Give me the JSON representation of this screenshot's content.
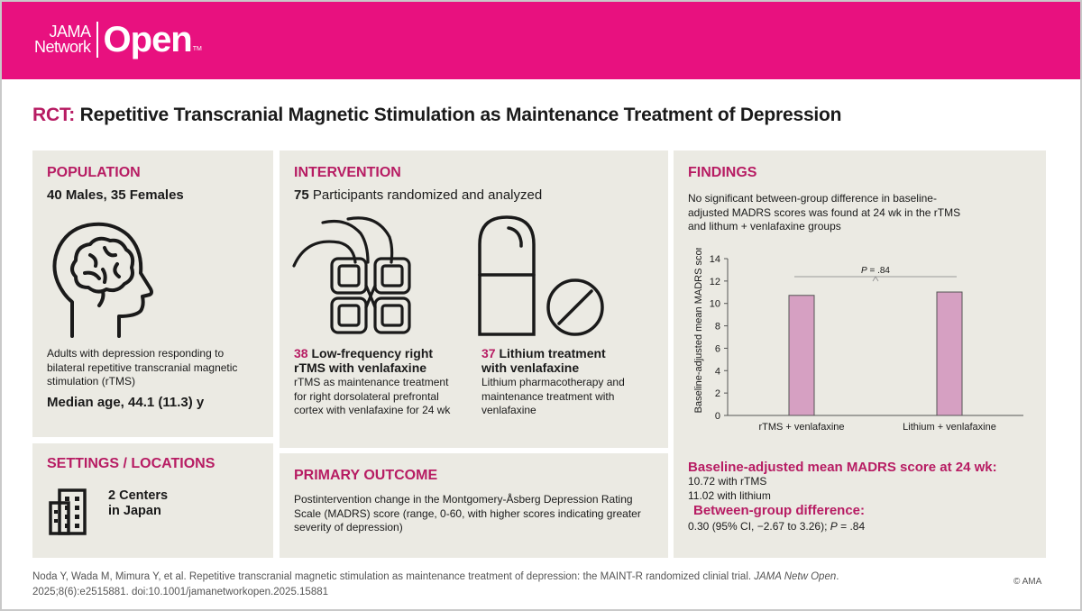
{
  "brand": {
    "line1": "JAMA",
    "line2": "Network",
    "product": "Open",
    "tm": "TM"
  },
  "colors": {
    "accent": "#e8117f",
    "heading": "#b71c63",
    "panel": "#ebeae3",
    "bar": "#d6a0c2"
  },
  "title": {
    "prefix": "RCT:",
    "text": "Repetitive Transcranial Magnetic Stimulation as Maintenance Treatment of Depression"
  },
  "population": {
    "heading": "POPULATION",
    "count": "40 Males, 35 Females",
    "icon": "head-brain-icon",
    "description": "Adults with depression responding to bilateral repetitive transcranial magnetic stimulation (rTMS)",
    "median_age": "Median age, 44.1 (11.3) y"
  },
  "settings": {
    "heading": "SETTINGS / LOCATIONS",
    "icon": "building-icon",
    "line1": "2 Centers",
    "line2": "in Japan"
  },
  "intervention": {
    "heading": "INTERVENTION",
    "count_num": "75",
    "count_text": "Participants randomized and analyzed",
    "arm1": {
      "icon": "rtms-coil-icon",
      "n": "38",
      "title_line1": "Low-frequency right",
      "title_line2": "rTMS with venlafaxine",
      "description": "rTMS as maintenance treatment for right dorsolateral prefrontal cortex with venlafaxine for 24 wk"
    },
    "arm2": {
      "icon": "pill-icon",
      "n": "37",
      "title_line1": "Lithium treatment",
      "title_line2": "with venlafaxine",
      "description": "Lithium pharmacotherapy and maintenance treatment with venlafaxine"
    }
  },
  "outcome": {
    "heading": "PRIMARY OUTCOME",
    "description": "Postintervention change in the Montgomery-Åsberg Depression Rating Scale (MADRS) score (range, 0-60, with higher scores indicating greater severity of depression)"
  },
  "findings": {
    "heading": "FINDINGS",
    "summary": "No significant between-group difference in baseline-adjusted MADRS scores was found at 24 wk in the rTMS and lithum + venlafaxine groups",
    "result_heading": "Baseline-adjusted mean MADRS score at 24 wk:",
    "result_rtms": "10.72 with rTMS",
    "result_lithium": "11.02 with lithium",
    "diff_heading": "Between-group difference:",
    "diff_value_prefix": "0.30 (95% CI, −2.67 to 3.26); ",
    "diff_p_label": "P",
    "diff_p_value": " = .84"
  },
  "chart_data": {
    "type": "bar",
    "categories": [
      "rTMS + venlafaxine",
      "Lithium + venlafaxine"
    ],
    "values": [
      10.72,
      11.02
    ],
    "ylabel": "Baseline-adjusted mean MADRS score",
    "ylim": [
      0,
      14
    ],
    "yticks": [
      0,
      2,
      4,
      6,
      8,
      10,
      12,
      14
    ],
    "annotation": {
      "label": "P",
      "value": " = .84"
    }
  },
  "footer": {
    "citation_prefix": "Noda Y, Wada M, Mimura Y, et al. Repetitive transcranial magnetic stimulation as maintenance treatment of depression: the MAINT-R randomized clinial trial. ",
    "journal": "JAMA Netw Open",
    "citation_suffix": ". 2025;8(6):e2515881. doi:10.1001/jamanetworkopen.2025.15881",
    "copyright": "© AMA"
  }
}
